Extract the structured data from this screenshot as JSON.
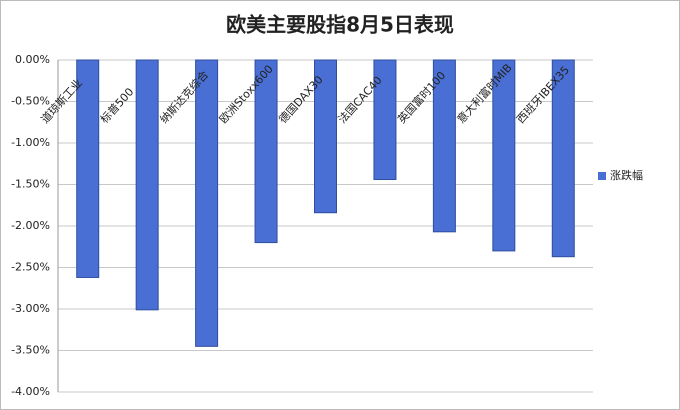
{
  "chart_data": {
    "type": "bar",
    "title": "欧美主要股指8月5日表现",
    "categories": [
      "道琼斯工业",
      "标普500",
      "纳斯达克综合",
      "欧洲Stoxx600",
      "德国DAX30",
      "法国CAC40",
      "英国富时100",
      "意大利富时MIB",
      "西班牙IBEX35"
    ],
    "series": [
      {
        "name": "涨跌幅",
        "color": "#4a6fd4",
        "values": [
          -2.62,
          -3.01,
          -3.45,
          -2.2,
          -1.84,
          -1.44,
          -2.07,
          -2.3,
          -2.37
        ]
      }
    ],
    "ylim": [
      -4,
      0
    ],
    "yticks": [
      {
        "value": 0,
        "label": "0.00%"
      },
      {
        "value": -0.5,
        "label": "-0.50%"
      },
      {
        "value": -1,
        "label": "-1.00%"
      },
      {
        "value": -1.5,
        "label": "-1.50%"
      },
      {
        "value": -2,
        "label": "-2.00%"
      },
      {
        "value": -2.5,
        "label": "-2.50%"
      },
      {
        "value": -3,
        "label": "-3.00%"
      },
      {
        "value": -3.5,
        "label": "-3.50%"
      },
      {
        "value": -4,
        "label": "-4.00%"
      }
    ],
    "grid": true,
    "legend": "right"
  }
}
